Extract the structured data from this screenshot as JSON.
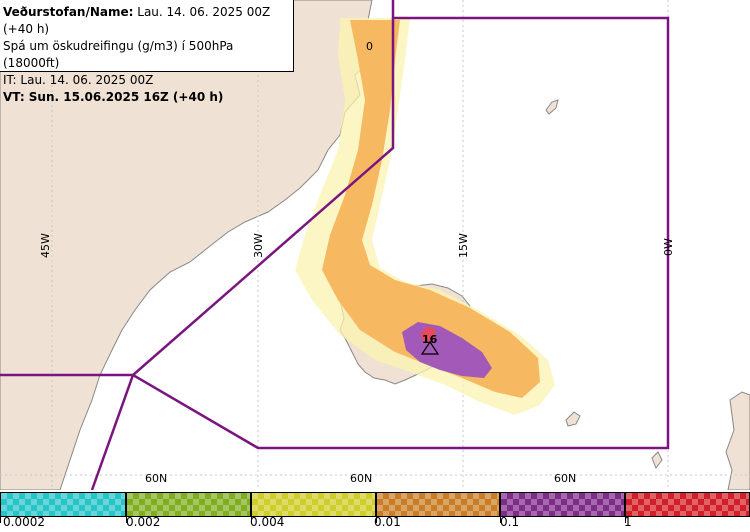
{
  "header": {
    "title_label": "Veðurstofan/Name:",
    "title_value": "Lau. 14. 06. 2025 00Z (+40 h)",
    "subtitle": "Spá um öskudreifingu (g/m3) í 500hPa (18000ft)",
    "issue_time": "IT: Lau. 14. 06. 2025 00Z",
    "valid_time": "VT: Sun. 15.06.2025 16Z (+40 h)"
  },
  "map": {
    "longitude_labels": [
      "45W",
      "30W",
      "15W",
      "0W"
    ],
    "latitude_labels": [
      "60N",
      "60N",
      "60N"
    ],
    "source_marker": "16",
    "contour_label": "0",
    "colors": {
      "land": "#efe1d4",
      "sea": "#ffffff",
      "coast": "#888888",
      "boundary": "#7a1580",
      "grid": "#c8c8c8"
    }
  },
  "legend": {
    "tick_labels": [
      "0.0002",
      "0.002",
      "0.004",
      "0.01",
      "0.1",
      "1"
    ],
    "swatch_colors": [
      "#27c5c9",
      "#7fae20",
      "#cfcd2a",
      "#c97d24",
      "#7e2b89",
      "#d21f27"
    ]
  }
}
